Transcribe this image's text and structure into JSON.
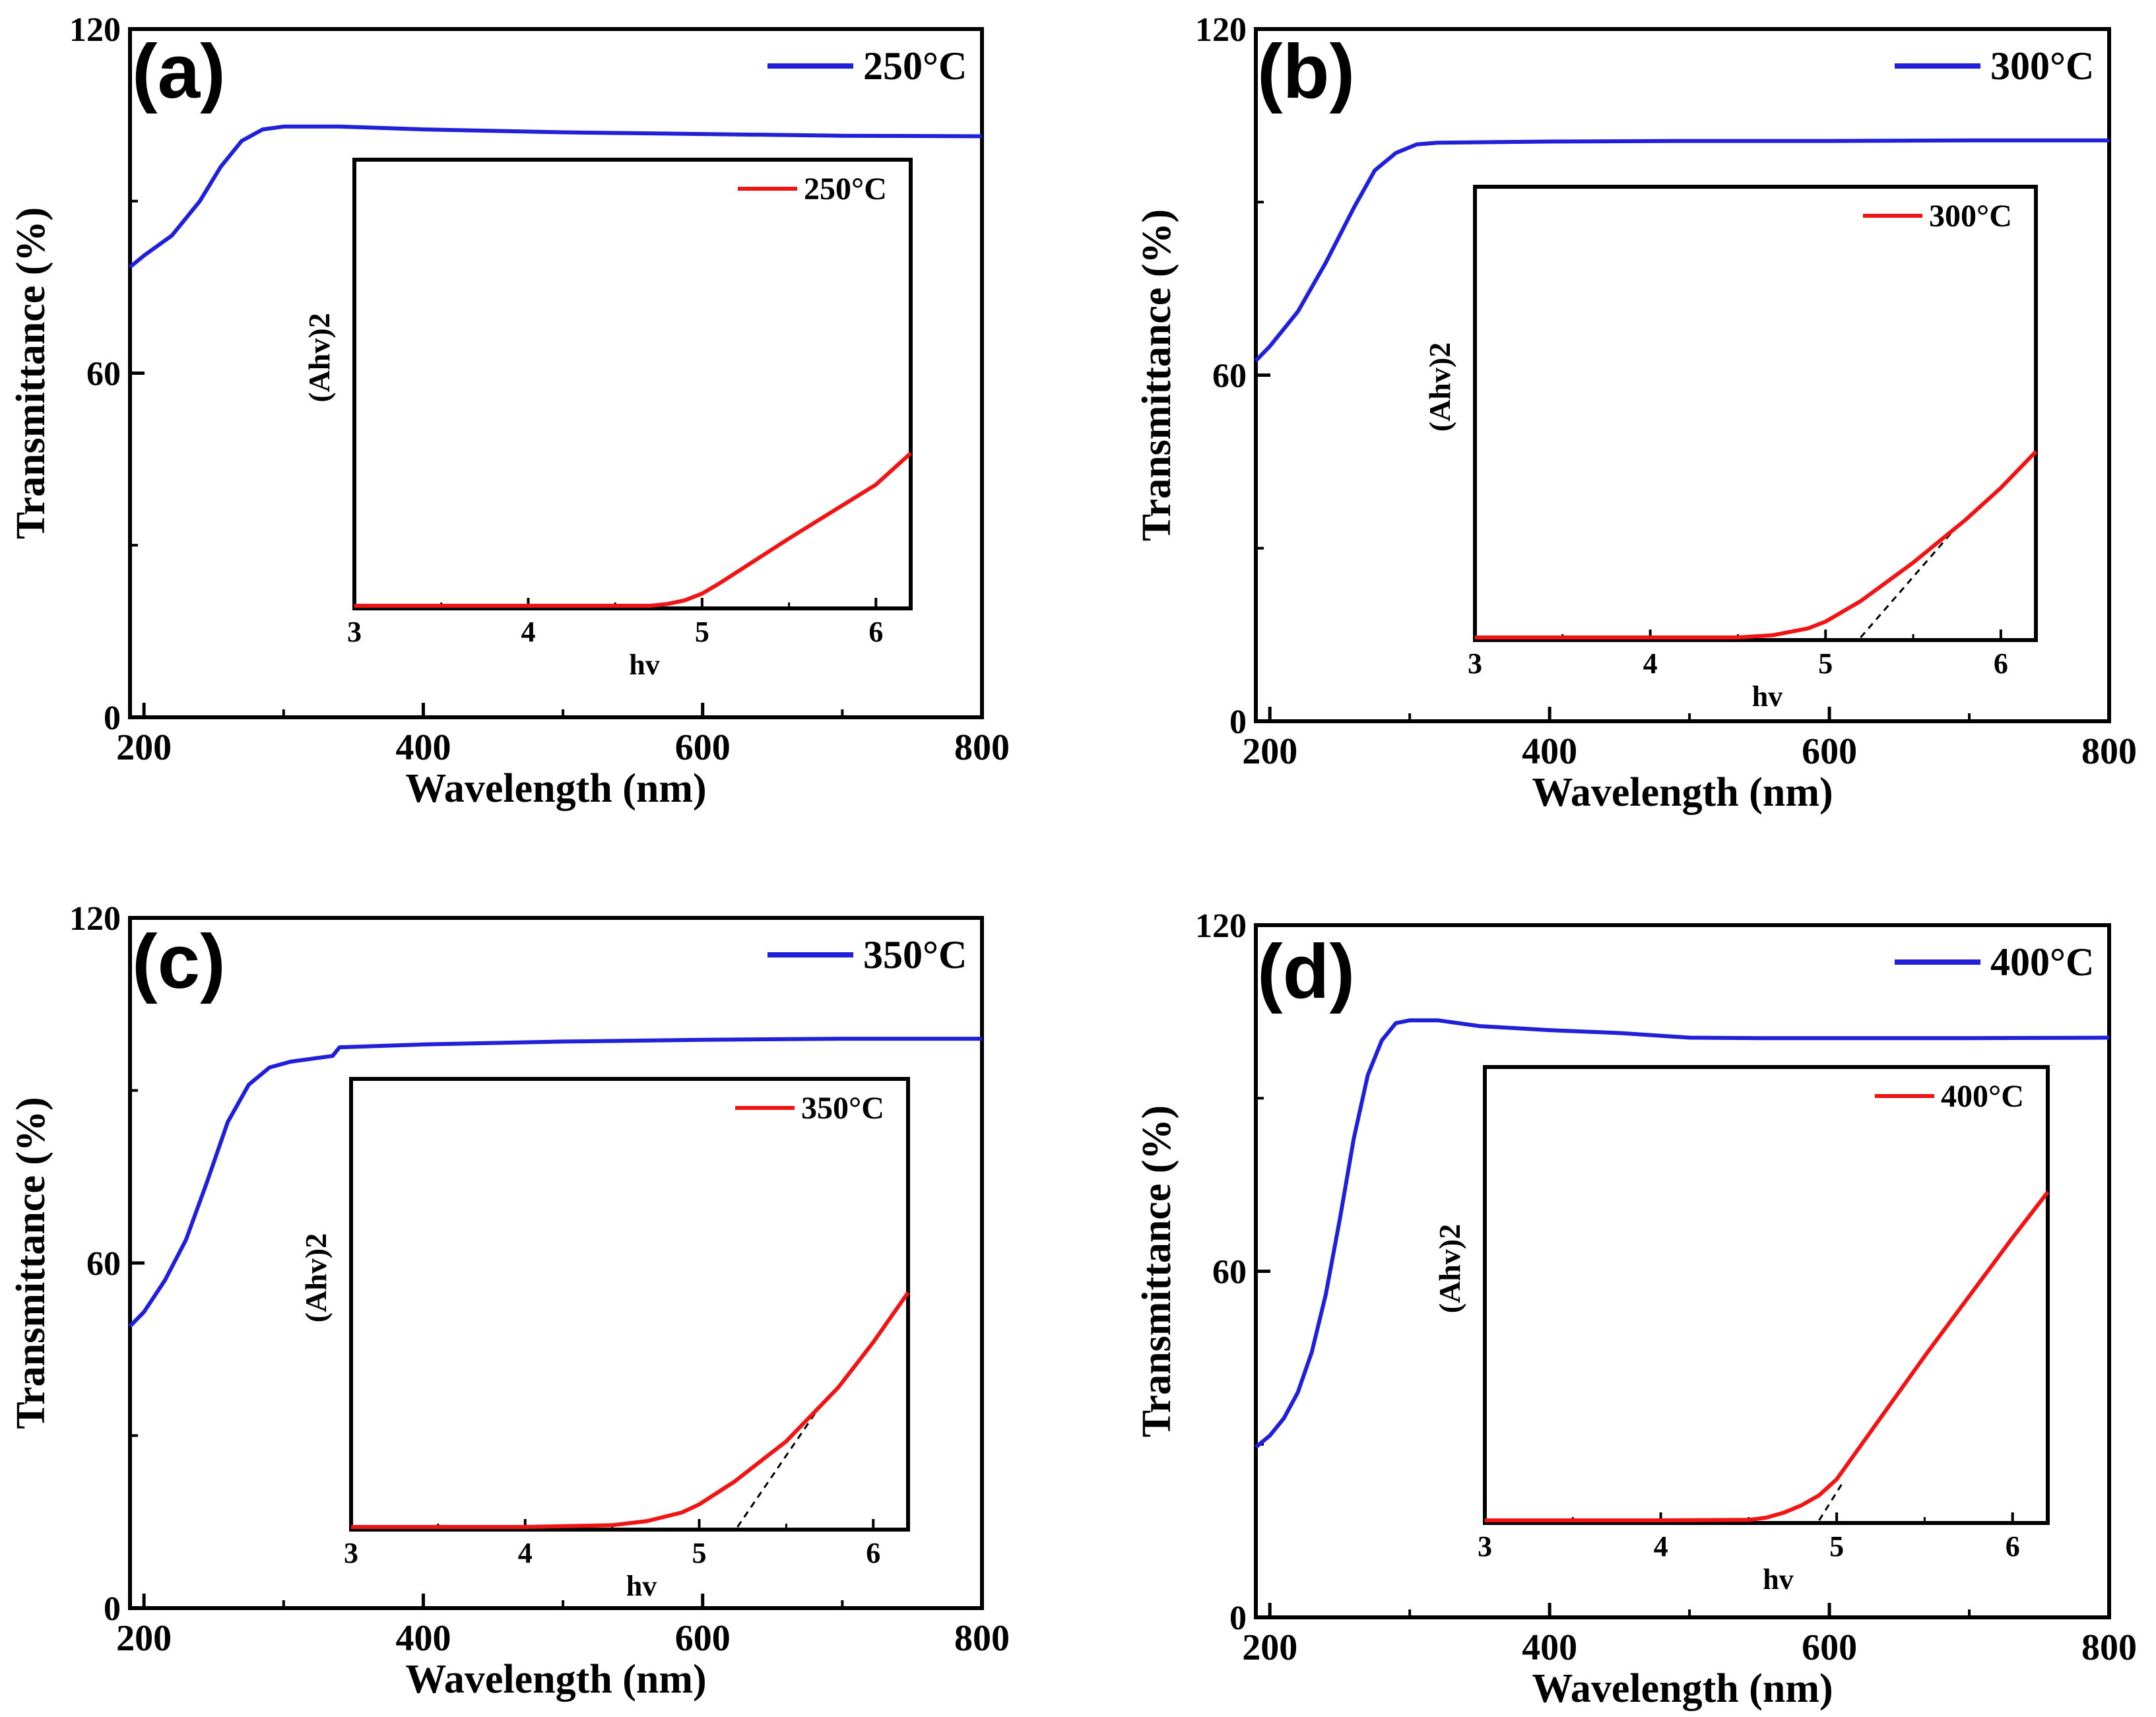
{
  "figure": {
    "colors": {
      "main_series": "#2020d8",
      "inset_series": "#f01414",
      "axes": "#000000",
      "tangent": "#000000"
    }
  },
  "chart_data": [
    {
      "id": "a",
      "panel_label": "(a)",
      "type": "line",
      "title": "",
      "xlabel": "Wavelength (nm)",
      "ylabel": "Transmittance (%)",
      "xlim": [
        190,
        800
      ],
      "ylim": [
        0,
        120
      ],
      "x_ticks": [
        200,
        400,
        600,
        800
      ],
      "y_ticks": [
        0,
        60,
        120
      ],
      "x_tick_labels": [
        "200",
        "400",
        "600",
        "800"
      ],
      "y_tick_labels": [
        "0",
        "60",
        "120"
      ],
      "legend": "top-right",
      "series": [
        {
          "name": "250°C",
          "x": [
            190,
            200,
            220,
            240,
            255,
            270,
            285,
            300,
            340,
            400,
            500,
            600,
            700,
            800
          ],
          "y": [
            78.5,
            80.5,
            84,
            90,
            96,
            100.5,
            102.5,
            103,
            103,
            102.5,
            102,
            101.7,
            101.4,
            101.3
          ]
        }
      ],
      "inset": {
        "type": "line",
        "xlabel": "hv",
        "ylabel": "(Ahv)2",
        "xlim": [
          3,
          6.2
        ],
        "ylim": [
          0,
          1
        ],
        "x_ticks": [
          3,
          4,
          5,
          6
        ],
        "x_tick_labels": [
          "3",
          "4",
          "5",
          "6"
        ],
        "legend": "top-right",
        "series": [
          {
            "name": "250°C",
            "x": [
              3.0,
              4.0,
              4.7,
              4.8,
              4.9,
              5.0,
              5.1,
              5.5,
              6.0,
              6.2
            ],
            "y": [
              0,
              0,
              0,
              0.004,
              0.012,
              0.027,
              0.05,
              0.15,
              0.27,
              0.34
            ]
          }
        ],
        "tangent": null
      }
    },
    {
      "id": "b",
      "panel_label": "(b)",
      "type": "line",
      "title": "",
      "xlabel": "Wavelength (nm)",
      "ylabel": "Transmittance (%)",
      "xlim": [
        190,
        800
      ],
      "ylim": [
        0,
        120
      ],
      "x_ticks": [
        200,
        400,
        600,
        800
      ],
      "y_ticks": [
        0,
        60,
        120
      ],
      "x_tick_labels": [
        "200",
        "400",
        "600",
        "800"
      ],
      "y_tick_labels": [
        "0",
        "60",
        "120"
      ],
      "legend": "top-right",
      "series": [
        {
          "name": "300°C",
          "x": [
            190,
            200,
            220,
            240,
            260,
            275,
            290,
            305,
            320,
            400,
            500,
            600,
            700,
            800
          ],
          "y": [
            62.5,
            65,
            71,
            79.5,
            89,
            95.5,
            98.5,
            100,
            100.3,
            100.5,
            100.6,
            100.6,
            100.7,
            100.7
          ]
        }
      ],
      "inset": {
        "type": "line",
        "xlabel": "hv",
        "ylabel": "(Ahv)2",
        "xlim": [
          3,
          6.2
        ],
        "ylim": [
          0,
          1
        ],
        "x_ticks": [
          3,
          4,
          5,
          6
        ],
        "x_tick_labels": [
          "3",
          "4",
          "5",
          "6"
        ],
        "legend": "top-right",
        "series": [
          {
            "name": "300°C",
            "x": [
              3.0,
              4.0,
              4.5,
              4.7,
              4.9,
              5.0,
              5.2,
              5.5,
              5.8,
              6.0,
              6.2
            ],
            "y": [
              0,
              0,
              0,
              0.005,
              0.02,
              0.035,
              0.08,
              0.165,
              0.26,
              0.33,
              0.41
            ]
          }
        ],
        "tangent": {
          "x": [
            5.2,
            5.75
          ],
          "y": [
            0,
            0.245
          ]
        }
      }
    },
    {
      "id": "c",
      "panel_label": "(c)",
      "type": "line",
      "title": "",
      "xlabel": "Wavelength (nm)",
      "ylabel": "Transmittance (%)",
      "xlim": [
        190,
        800
      ],
      "ylim": [
        0,
        120
      ],
      "x_ticks": [
        200,
        400,
        600,
        800
      ],
      "y_ticks": [
        0,
        60,
        120
      ],
      "x_tick_labels": [
        "200",
        "400",
        "600",
        "800"
      ],
      "y_tick_labels": [
        "0",
        "60",
        "120"
      ],
      "legend": "top-right",
      "series": [
        {
          "name": "350°C",
          "x": [
            190,
            200,
            215,
            230,
            245,
            260,
            275,
            290,
            305,
            335,
            340,
            400,
            500,
            600,
            700,
            800
          ],
          "y": [
            49,
            51.5,
            57,
            64,
            74,
            84.5,
            91,
            94,
            95,
            96,
            97.5,
            98,
            98.5,
            98.8,
            99,
            99
          ]
        }
      ],
      "inset": {
        "type": "line",
        "xlabel": "hv",
        "ylabel": "(Ahv)2",
        "xlim": [
          3,
          6.2
        ],
        "ylim": [
          0,
          1
        ],
        "x_ticks": [
          3,
          4,
          5,
          6
        ],
        "x_tick_labels": [
          "3",
          "4",
          "5",
          "6"
        ],
        "legend": "top-right",
        "series": [
          {
            "name": "350°C",
            "x": [
              3.0,
              4.0,
              4.5,
              4.7,
              4.9,
              5.0,
              5.2,
              5.5,
              5.8,
              6.0,
              6.2
            ],
            "y": [
              0,
              0,
              0.004,
              0.013,
              0.032,
              0.05,
              0.1,
              0.19,
              0.31,
              0.41,
              0.52
            ]
          }
        ],
        "tangent": {
          "x": [
            5.22,
            5.68
          ],
          "y": [
            0,
            0.26
          ]
        }
      }
    },
    {
      "id": "d",
      "panel_label": "(d)",
      "type": "line",
      "title": "",
      "xlabel": "Wavelength (nm)",
      "ylabel": "Transmittance (%)",
      "xlim": [
        190,
        800
      ],
      "ylim": [
        0,
        120
      ],
      "x_ticks": [
        200,
        400,
        600,
        800
      ],
      "y_ticks": [
        0,
        60,
        120
      ],
      "x_tick_labels": [
        "200",
        "400",
        "600",
        "800"
      ],
      "y_tick_labels": [
        "0",
        "60",
        "120"
      ],
      "legend": "top-right",
      "series": [
        {
          "name": "400°C",
          "x": [
            190,
            200,
            210,
            220,
            230,
            240,
            250,
            260,
            270,
            280,
            290,
            300,
            320,
            350,
            400,
            450,
            500,
            550,
            600,
            700,
            800
          ],
          "y": [
            29.5,
            31.5,
            34.5,
            39,
            46,
            56,
            69,
            83,
            94,
            100,
            103,
            103.5,
            103.5,
            102.5,
            101.8,
            101.3,
            100.5,
            100.4,
            100.4,
            100.4,
            100.5
          ]
        }
      ],
      "inset": {
        "type": "line",
        "xlabel": "hv",
        "ylabel": "(Ahv)2",
        "xlim": [
          3,
          6.2
        ],
        "ylim": [
          0,
          1
        ],
        "x_ticks": [
          3,
          4,
          5,
          6
        ],
        "x_tick_labels": [
          "3",
          "4",
          "5",
          "6"
        ],
        "legend": "top-right",
        "series": [
          {
            "name": "400°C",
            "x": [
              3.0,
              4.0,
              4.5,
              4.6,
              4.7,
              4.8,
              4.9,
              5.0,
              5.5,
              6.0,
              6.2
            ],
            "y": [
              0,
              0,
              0.001,
              0.006,
              0.017,
              0.033,
              0.055,
              0.09,
              0.36,
              0.62,
              0.72
            ]
          }
        ],
        "tangent": {
          "x": [
            4.9,
            5.03
          ],
          "y": [
            0,
            0.08
          ]
        }
      }
    }
  ]
}
